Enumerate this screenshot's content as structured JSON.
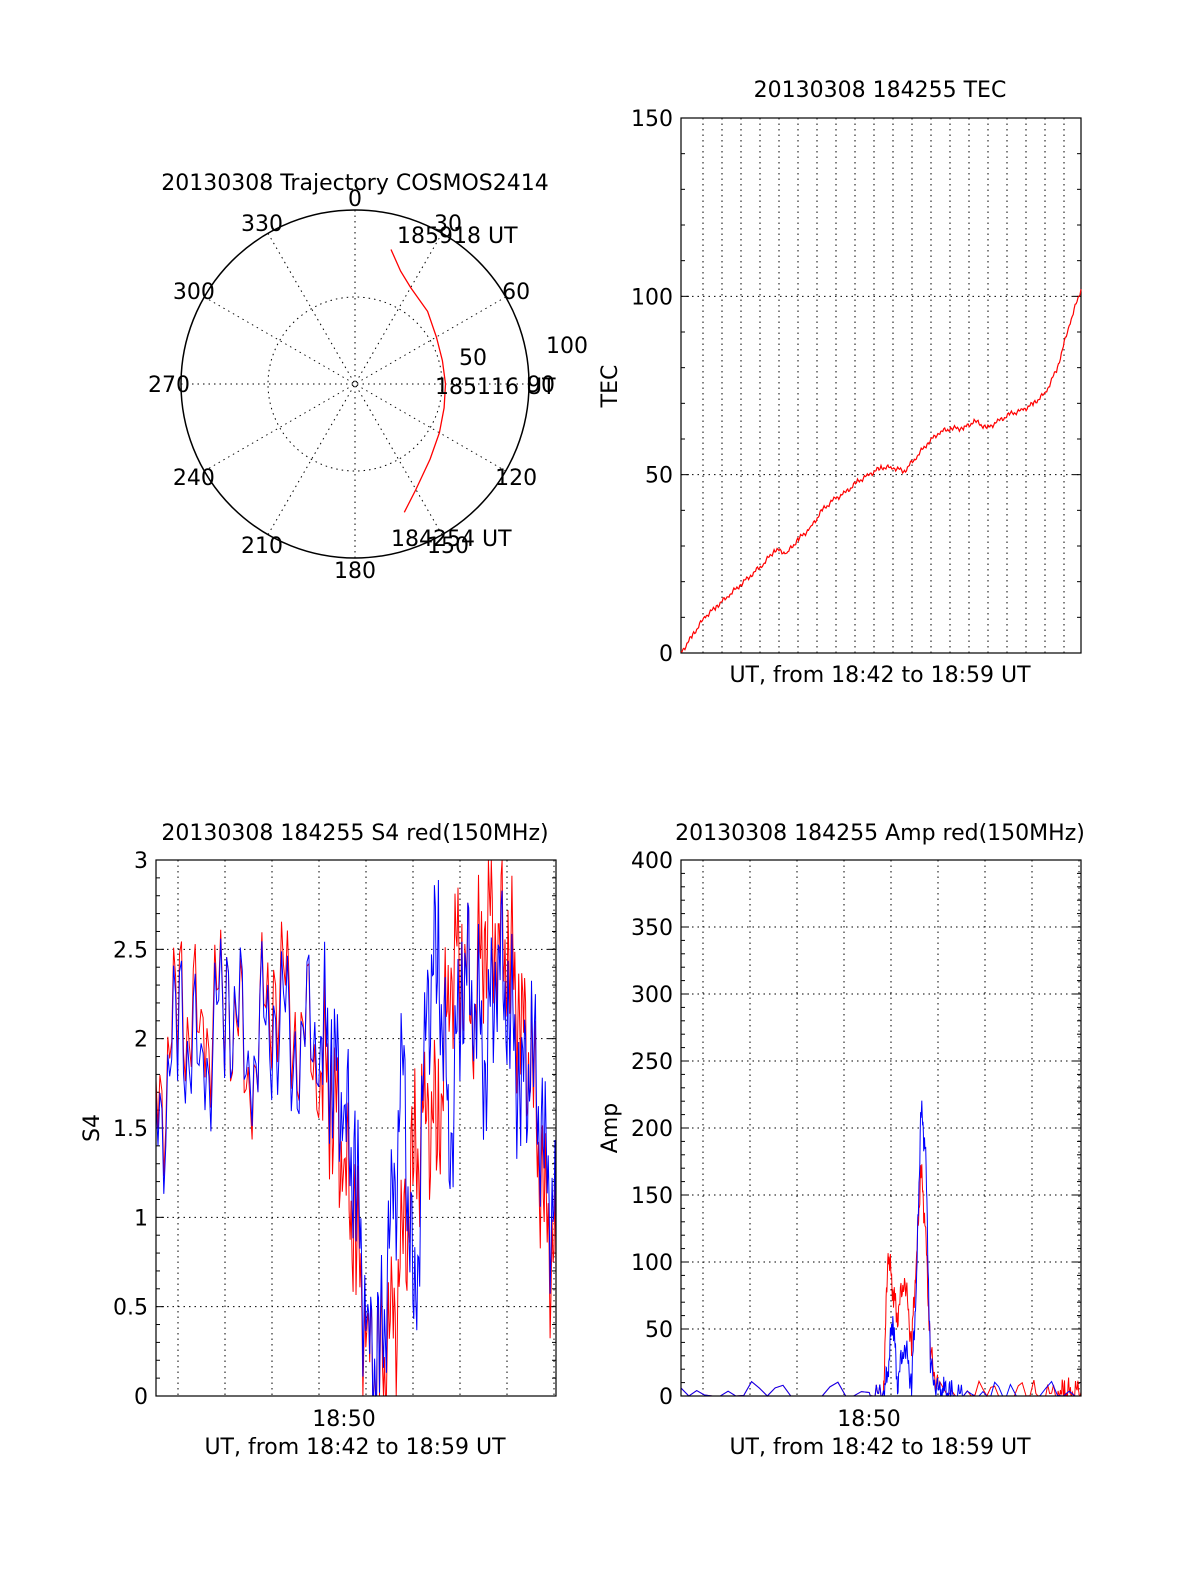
{
  "chart_data": [
    {
      "type": "polar-trajectory",
      "title": "20130308 Trajectory COSMOS2414",
      "angle_labels": [
        "0",
        "30",
        "60",
        "90",
        "120",
        "150",
        "180",
        "210",
        "240",
        "270",
        "300",
        "330"
      ],
      "radius_labels": [
        "50",
        "100"
      ],
      "radius_range": [
        0,
        100
      ],
      "series": [
        {
          "color": "#ff0000",
          "start_label": "184254 UT",
          "mid_label": "185116 UT",
          "end_label": "185918 UT",
          "points": [
            [
              159,
              79
            ],
            [
              150,
              70
            ],
            [
              135,
              61
            ],
            [
              120,
              56
            ],
            [
              105,
              53
            ],
            [
              90,
              52
            ],
            [
              75,
              52
            ],
            [
              60,
              54
            ],
            [
              45,
              59
            ],
            [
              30,
              64
            ],
            [
              22,
              70
            ],
            [
              15,
              80
            ]
          ]
        }
      ]
    },
    {
      "type": "line",
      "title": "20130308 184255 TEC",
      "xlabel": "UT, from 18:42 to 18:59 UT",
      "ylabel": "TEC",
      "ylim": [
        0,
        150
      ],
      "yticks": [
        "0",
        "50",
        "100",
        "150"
      ],
      "xlim": [
        0,
        17
      ],
      "x_vertical_grid_count": 20,
      "grid": true,
      "series": [
        {
          "color": "#ff0000",
          "x": [
            0,
            0.5,
            1,
            1.5,
            2,
            2.5,
            3,
            3.5,
            4,
            4.5,
            5,
            5.5,
            6,
            6.5,
            7,
            7.5,
            8,
            8.5,
            9,
            9.5,
            10,
            10.5,
            11,
            11.5,
            12,
            12.5,
            13,
            13.5,
            14,
            14.5,
            15,
            15.5,
            16,
            16.5,
            17
          ],
          "y": [
            0,
            5,
            10,
            13,
            16,
            19,
            22,
            25,
            29,
            28,
            32,
            35,
            40,
            43,
            45,
            48,
            50,
            52,
            52,
            51,
            55,
            59,
            62,
            63,
            63,
            65,
            63,
            65,
            67,
            68,
            70,
            73,
            80,
            92,
            102
          ]
        }
      ]
    },
    {
      "type": "line",
      "title": "20130308 184255 S4 red(150MHz)",
      "xlabel": "UT, from 18:42 to 18:59 UT",
      "ylabel": "S4",
      "ylim": [
        0,
        3
      ],
      "yticks": [
        "0",
        "0.5",
        "1",
        "1.5",
        "2",
        "2.5",
        "3"
      ],
      "xlim": [
        0,
        17
      ],
      "xticks": [
        {
          "value": 8,
          "label": "18:50"
        }
      ],
      "grid": true,
      "series": [
        {
          "color": "#ff0000",
          "x": [
            0,
            1,
            2,
            3,
            4,
            5,
            6,
            7,
            7.5,
            8,
            8.5,
            9,
            9.5,
            10,
            10.5,
            11,
            11.5,
            12,
            12.5,
            13,
            13.5,
            14,
            14.5,
            15,
            15.5,
            16,
            16.5,
            17
          ],
          "y": [
            1.5,
            2.2,
            2.0,
            2.3,
            1.8,
            2.4,
            2.1,
            1.9,
            1.7,
            1.3,
            0.9,
            0.2,
            0.12,
            0.3,
            0.8,
            1.3,
            1.6,
            1.5,
            2.4,
            2.5,
            2.2,
            2.7,
            2.6,
            2.5,
            2.1,
            1.8,
            1.0,
            0.7
          ]
        },
        {
          "color": "#0000ff",
          "x": [
            0,
            1,
            2,
            3,
            4,
            5,
            6,
            7,
            7.5,
            8,
            8.5,
            9,
            9.5,
            10,
            10.5,
            11,
            11.5,
            12,
            12.5,
            13,
            13.5,
            14,
            14.5,
            15,
            15.5,
            16,
            16.5,
            17
          ],
          "y": [
            1.4,
            2.1,
            1.8,
            2.3,
            1.9,
            2.2,
            2.0,
            2.1,
            1.9,
            1.6,
            1.2,
            0.25,
            0.15,
            0.9,
            1.8,
            0.3,
            2.2,
            2.5,
            1.4,
            2.4,
            2.3,
            1.9,
            2.5,
            2.2,
            1.7,
            1.9,
            1.3,
            0.9
          ]
        }
      ]
    },
    {
      "type": "line",
      "title": "20130308 184255 Amp red(150MHz)",
      "xlabel": "UT, from 18:42 to 18:59 UT",
      "ylabel": "Amp",
      "ylim": [
        0,
        400
      ],
      "yticks": [
        "0",
        "50",
        "100",
        "150",
        "200",
        "250",
        "300",
        "350",
        "400"
      ],
      "xlim": [
        0,
        17
      ],
      "xticks": [
        {
          "value": 8,
          "label": "18:50"
        }
      ],
      "grid": true,
      "series": [
        {
          "color": "#ff0000",
          "x": [
            0,
            4,
            8,
            8.6,
            8.8,
            9,
            9.2,
            9.5,
            9.8,
            10,
            10.2,
            10.4,
            10.6,
            11,
            13,
            15,
            16,
            16.3,
            16.6,
            17
          ],
          "y": [
            0,
            0,
            0,
            0,
            110,
            80,
            60,
            90,
            40,
            100,
            170,
            120,
            30,
            0,
            0,
            0,
            0,
            3,
            3,
            3
          ]
        },
        {
          "color": "#0000ff",
          "x": [
            0,
            4,
            8,
            8.6,
            8.8,
            9,
            9.2,
            9.5,
            9.8,
            10,
            10.2,
            10.4,
            10.6,
            11,
            11.2,
            11.5,
            12,
            14,
            17
          ],
          "y": [
            0,
            0,
            0,
            0,
            20,
            60,
            10,
            40,
            10,
            80,
            215,
            180,
            20,
            0,
            4,
            0,
            0,
            0,
            0
          ]
        }
      ]
    }
  ]
}
